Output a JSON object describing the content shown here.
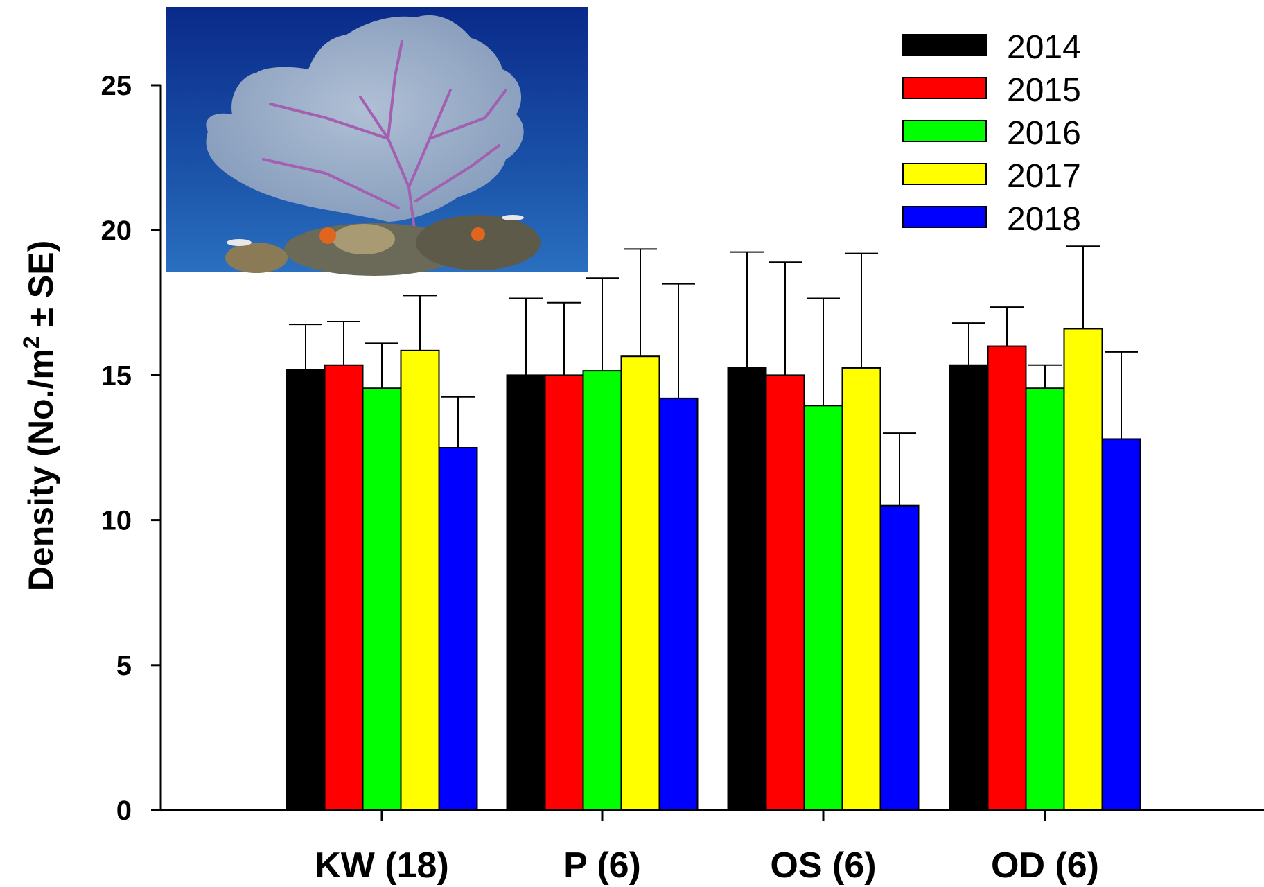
{
  "chart_data": {
    "type": "bar",
    "title": "",
    "xlabel": "",
    "ylabel": "Density (No./m",
    "ylabel_superscript": "2",
    "ylabel_suffix": " ± SE)",
    "ylim": [
      0,
      25
    ],
    "yticks": [
      0,
      5,
      10,
      15,
      20,
      25
    ],
    "categories": [
      "KW (18)",
      "P (6)",
      "OS (6)",
      "OD (6)"
    ],
    "series": [
      {
        "name": "2014",
        "color": "#000000",
        "values": [
          15.2,
          15.0,
          15.25,
          15.35
        ],
        "errors": [
          1.55,
          2.65,
          4.0,
          1.45
        ]
      },
      {
        "name": "2015",
        "color": "#ff0000",
        "values": [
          15.35,
          15.0,
          15.0,
          16.0
        ],
        "errors": [
          1.5,
          2.5,
          3.9,
          1.35
        ]
      },
      {
        "name": "2016",
        "color": "#00ff00",
        "values": [
          14.55,
          15.15,
          13.95,
          14.55
        ],
        "errors": [
          1.55,
          3.2,
          3.7,
          0.8
        ]
      },
      {
        "name": "2017",
        "color": "#ffff00",
        "values": [
          15.85,
          15.65,
          15.25,
          16.6
        ],
        "errors": [
          1.9,
          3.7,
          3.95,
          2.85
        ]
      },
      {
        "name": "2018",
        "color": "#0000ff",
        "values": [
          12.5,
          14.2,
          10.5,
          12.8
        ],
        "errors": [
          1.75,
          3.95,
          2.5,
          3.0
        ]
      }
    ],
    "legend_position": "top-right",
    "grid": false
  },
  "inset_image": {
    "icon": "sea-fan-coral-photo",
    "colors": {
      "water_top": "#0a2a8a",
      "water_bottom": "#1f5fb5",
      "fan": "#9fb2c8",
      "branch": "#9c5aa8",
      "rock": "#6b6a58"
    }
  }
}
